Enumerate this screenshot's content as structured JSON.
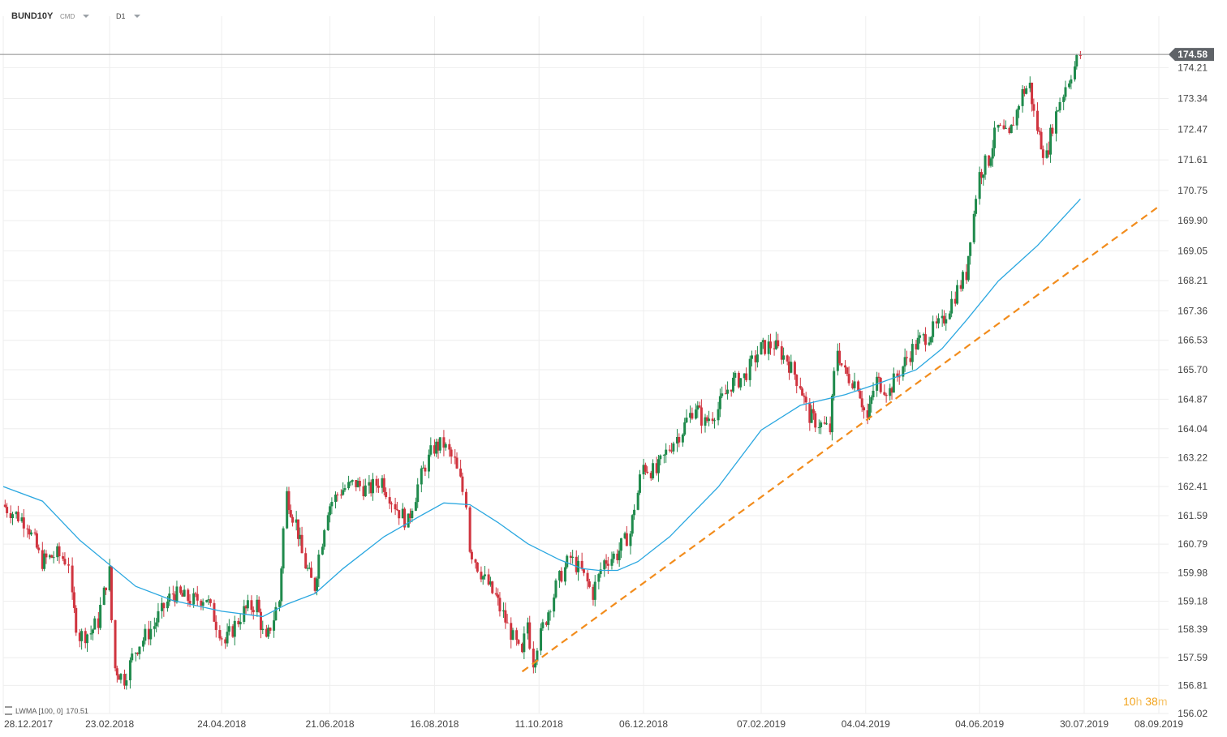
{
  "header": {
    "symbol": "BUND10Y",
    "source": "CMD",
    "timeframe": "D1"
  },
  "indicator": {
    "label": "LWMA [100, 0]",
    "value": "170.51"
  },
  "timer": {
    "hours": "10",
    "hours_unit": "h",
    "minutes": "38",
    "minutes_unit": "m"
  },
  "colors": {
    "up": "#1f8a4c",
    "down": "#d0343f",
    "lwma": "#2aa7e0",
    "trend": "#f28c1c",
    "price_tag": "#5f6368",
    "grid": "#eeeeee"
  },
  "chart_data": {
    "type": "candlestick",
    "title": "",
    "ylim": [
      156.02,
      175.2
    ],
    "y_ticks": [
      "174.21",
      "173.34",
      "172.47",
      "171.61",
      "170.75",
      "169.90",
      "169.05",
      "168.21",
      "167.36",
      "166.53",
      "165.70",
      "164.87",
      "164.04",
      "163.22",
      "162.41",
      "161.59",
      "160.79",
      "159.98",
      "159.18",
      "158.39",
      "157.59",
      "156.81",
      "156.02"
    ],
    "x_ticks": [
      "28.12.2017",
      "23.02.2018",
      "24.04.2018",
      "21.06.2018",
      "16.08.2018",
      "11.10.2018",
      "06.12.2018",
      "07.02.2019",
      "04.04.2019",
      "04.06.2019",
      "30.07.2019",
      "08.09.2019"
    ],
    "last_price": "174.58",
    "price_series": [
      {
        "date": "2017-12-28",
        "close": 161.9
      },
      {
        "date": "2018-01-10",
        "close": 161.4
      },
      {
        "date": "2018-01-18",
        "close": 160.3
      },
      {
        "date": "2018-01-26",
        "close": 160.5
      },
      {
        "date": "2018-02-01",
        "close": 160.3
      },
      {
        "date": "2018-02-03",
        "close": 159.2
      },
      {
        "date": "2018-02-07",
        "close": 158.2
      },
      {
        "date": "2018-02-13",
        "close": 158.3
      },
      {
        "date": "2018-02-17",
        "close": 158.6
      },
      {
        "date": "2018-02-20",
        "close": 159.4
      },
      {
        "date": "2018-02-23",
        "close": 160.0
      },
      {
        "date": "2018-02-26",
        "close": 157.3
      },
      {
        "date": "2018-03-03",
        "close": 157.0
      },
      {
        "date": "2018-03-09",
        "close": 157.8
      },
      {
        "date": "2018-03-19",
        "close": 158.5
      },
      {
        "date": "2018-03-29",
        "close": 159.4
      },
      {
        "date": "2018-04-09",
        "close": 159.2
      },
      {
        "date": "2018-04-16",
        "close": 159.3
      },
      {
        "date": "2018-04-26",
        "close": 158.0
      },
      {
        "date": "2018-05-06",
        "close": 158.9
      },
      {
        "date": "2018-05-13",
        "close": 159.1
      },
      {
        "date": "2018-05-18",
        "close": 158.0
      },
      {
        "date": "2018-05-25",
        "close": 159.2
      },
      {
        "date": "2018-05-29",
        "close": 162.2
      },
      {
        "date": "2018-06-03",
        "close": 161.4
      },
      {
        "date": "2018-06-08",
        "close": 160.2
      },
      {
        "date": "2018-06-13",
        "close": 159.6
      },
      {
        "date": "2018-06-20",
        "close": 161.8
      },
      {
        "date": "2018-06-27",
        "close": 162.3
      },
      {
        "date": "2018-07-05",
        "close": 162.5
      },
      {
        "date": "2018-07-12",
        "close": 162.3
      },
      {
        "date": "2018-07-19",
        "close": 162.6
      },
      {
        "date": "2018-07-26",
        "close": 161.9
      },
      {
        "date": "2018-08-02",
        "close": 161.4
      },
      {
        "date": "2018-08-09",
        "close": 162.7
      },
      {
        "date": "2018-08-16",
        "close": 163.5
      },
      {
        "date": "2018-08-21",
        "close": 163.6
      },
      {
        "date": "2018-08-27",
        "close": 163.1
      },
      {
        "date": "2018-09-02",
        "close": 162.0
      },
      {
        "date": "2018-09-04",
        "close": 160.7
      },
      {
        "date": "2018-09-10",
        "close": 160.0
      },
      {
        "date": "2018-09-18",
        "close": 159.3
      },
      {
        "date": "2018-09-26",
        "close": 158.3
      },
      {
        "date": "2018-10-02",
        "close": 157.6
      },
      {
        "date": "2018-10-05",
        "close": 158.6
      },
      {
        "date": "2018-10-08",
        "close": 157.5
      },
      {
        "date": "2018-10-15",
        "close": 158.7
      },
      {
        "date": "2018-10-22",
        "close": 159.8
      },
      {
        "date": "2018-10-28",
        "close": 160.4
      },
      {
        "date": "2018-11-03",
        "close": 160.0
      },
      {
        "date": "2018-11-09",
        "close": 159.4
      },
      {
        "date": "2018-11-15",
        "close": 160.3
      },
      {
        "date": "2018-11-22",
        "close": 160.5
      },
      {
        "date": "2018-11-29",
        "close": 161.1
      },
      {
        "date": "2018-12-06",
        "close": 163.0
      },
      {
        "date": "2018-12-13",
        "close": 162.8
      },
      {
        "date": "2018-12-20",
        "close": 163.5
      },
      {
        "date": "2018-12-27",
        "close": 164.0
      },
      {
        "date": "2019-01-03",
        "close": 164.7
      },
      {
        "date": "2019-01-08",
        "close": 164.2
      },
      {
        "date": "2019-01-15",
        "close": 164.6
      },
      {
        "date": "2019-01-22",
        "close": 165.3
      },
      {
        "date": "2019-01-29",
        "close": 165.5
      },
      {
        "date": "2019-02-07",
        "close": 166.3
      },
      {
        "date": "2019-02-14",
        "close": 166.4
      },
      {
        "date": "2019-02-21",
        "close": 166.0
      },
      {
        "date": "2019-02-28",
        "close": 165.3
      },
      {
        "date": "2019-03-05",
        "close": 164.4
      },
      {
        "date": "2019-03-10",
        "close": 164.2
      },
      {
        "date": "2019-03-16",
        "close": 164.0
      },
      {
        "date": "2019-03-20",
        "close": 166.3
      },
      {
        "date": "2019-03-24",
        "close": 165.6
      },
      {
        "date": "2019-03-31",
        "close": 165.3
      },
      {
        "date": "2019-04-05",
        "close": 164.3
      },
      {
        "date": "2019-04-10",
        "close": 165.4
      },
      {
        "date": "2019-04-17",
        "close": 165.1
      },
      {
        "date": "2019-04-24",
        "close": 165.8
      },
      {
        "date": "2019-05-01",
        "close": 166.4
      },
      {
        "date": "2019-05-08",
        "close": 166.7
      },
      {
        "date": "2019-05-15",
        "close": 167.0
      },
      {
        "date": "2019-05-22",
        "close": 167.8
      },
      {
        "date": "2019-05-28",
        "close": 168.4
      },
      {
        "date": "2019-06-04",
        "close": 171.2
      },
      {
        "date": "2019-06-09",
        "close": 171.6
      },
      {
        "date": "2019-06-14",
        "close": 172.5
      },
      {
        "date": "2019-06-20",
        "close": 172.2
      },
      {
        "date": "2019-06-27",
        "close": 173.5
      },
      {
        "date": "2019-07-01",
        "close": 173.7
      },
      {
        "date": "2019-07-05",
        "close": 172.5
      },
      {
        "date": "2019-07-10",
        "close": 171.7
      },
      {
        "date": "2019-07-15",
        "close": 172.9
      },
      {
        "date": "2019-07-22",
        "close": 173.9
      },
      {
        "date": "2019-07-28",
        "close": 174.58
      }
    ],
    "lwma_series": [
      {
        "date": "2017-12-28",
        "value": 162.41
      },
      {
        "date": "2018-01-18",
        "value": 162.0
      },
      {
        "date": "2018-02-07",
        "value": 160.9
      },
      {
        "date": "2018-03-09",
        "value": 159.6
      },
      {
        "date": "2018-03-29",
        "value": 159.2
      },
      {
        "date": "2018-04-24",
        "value": 158.9
      },
      {
        "date": "2018-05-16",
        "value": 158.75
      },
      {
        "date": "2018-05-29",
        "value": 159.1
      },
      {
        "date": "2018-06-13",
        "value": 159.4
      },
      {
        "date": "2018-06-28",
        "value": 160.1
      },
      {
        "date": "2018-07-20",
        "value": 161.0
      },
      {
        "date": "2018-08-09",
        "value": 161.6
      },
      {
        "date": "2018-08-21",
        "value": 161.95
      },
      {
        "date": "2018-09-04",
        "value": 161.9
      },
      {
        "date": "2018-09-19",
        "value": 161.4
      },
      {
        "date": "2018-10-05",
        "value": 160.8
      },
      {
        "date": "2018-10-22",
        "value": 160.35
      },
      {
        "date": "2018-11-03",
        "value": 160.1
      },
      {
        "date": "2018-11-12",
        "value": 160.05
      },
      {
        "date": "2018-11-22",
        "value": 160.05
      },
      {
        "date": "2018-12-03",
        "value": 160.3
      },
      {
        "date": "2018-12-20",
        "value": 161.0
      },
      {
        "date": "2019-01-15",
        "value": 162.4
      },
      {
        "date": "2019-02-07",
        "value": 164.0
      },
      {
        "date": "2019-02-28",
        "value": 164.7
      },
      {
        "date": "2019-03-24",
        "value": 165.0
      },
      {
        "date": "2019-04-10",
        "value": 165.3
      },
      {
        "date": "2019-05-01",
        "value": 165.7
      },
      {
        "date": "2019-05-15",
        "value": 166.3
      },
      {
        "date": "2019-05-28",
        "value": 167.1
      },
      {
        "date": "2019-06-14",
        "value": 168.2
      },
      {
        "date": "2019-07-05",
        "value": 169.2
      },
      {
        "date": "2019-07-28",
        "value": 170.51
      }
    ],
    "trendline": {
      "start": {
        "date": "2018-10-02",
        "value": 157.2
      },
      "end": {
        "date": "2019-09-08",
        "value": 170.3
      },
      "style": "dashed"
    },
    "grid": true
  }
}
